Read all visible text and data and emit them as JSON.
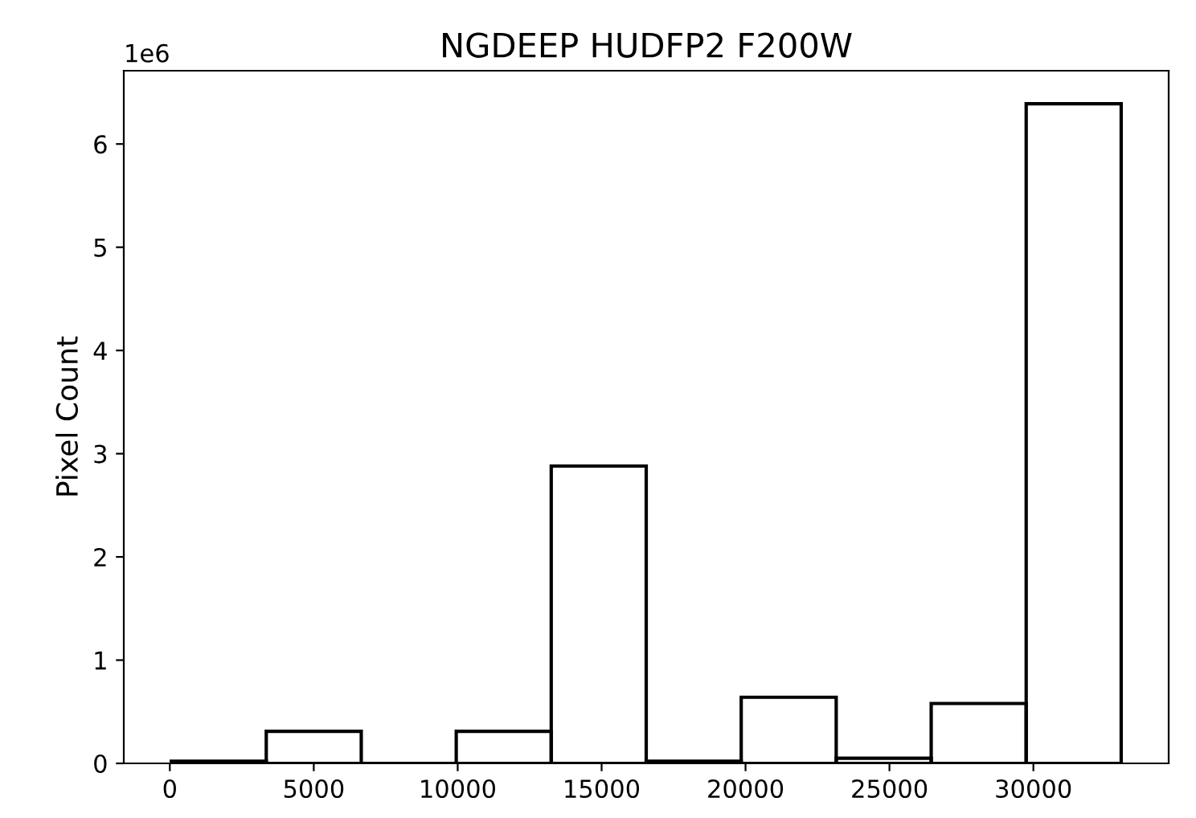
{
  "chart_data": {
    "type": "histogram",
    "title": "NGDEEP HUDFP2 F200W",
    "ylabel": "Pixel Count",
    "bins": [
      50,
      3350,
      6650,
      9950,
      13250,
      16550,
      19850,
      23150,
      26450,
      29750,
      33050
    ],
    "values": [
      0.02,
      0.31,
      0,
      0.31,
      2.88,
      0.02,
      0.64,
      0.05,
      0.58,
      6.39
    ],
    "color": "#000000",
    "xlim": [
      -1600,
      34700
    ],
    "xticks": [
      0,
      5000,
      10000,
      15000,
      20000,
      25000,
      30000
    ],
    "ylim": [
      0,
      6.71
    ],
    "yticks": [
      0,
      1,
      2,
      3,
      4,
      5,
      6
    ],
    "annotations": [
      "1e6"
    ],
    "grid": false
  }
}
